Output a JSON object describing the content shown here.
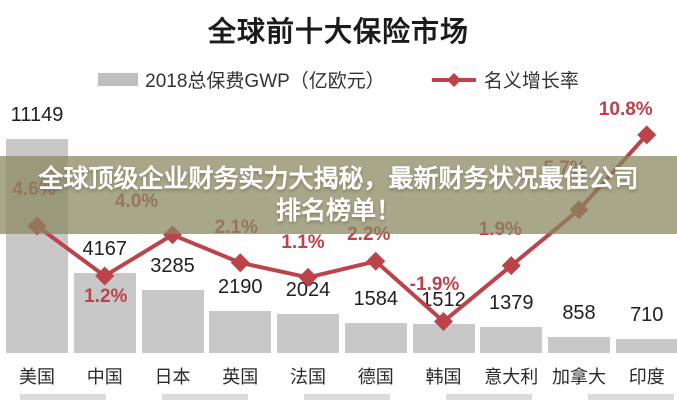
{
  "title": "全球前十大保险市场",
  "legend": {
    "bar_label": "2018总保费GWP（亿欧元）",
    "line_label": "名义增长率"
  },
  "overlay": {
    "line1": "全球顶级企业财务实力大揭秘，最新财务状况最佳公司",
    "line2": "排名榜单！"
  },
  "chart_data": {
    "type": "bar",
    "subtype": "bar-line-combo",
    "title": "全球前十大保险市场",
    "categories": [
      "美国",
      "中国",
      "日本",
      "英国",
      "法国",
      "德国",
      "韩国",
      "意大利",
      "加拿大",
      "印度"
    ],
    "series": [
      {
        "name": "2018总保费GWP（亿欧元）",
        "type": "bar",
        "values": [
          11149,
          4167,
          3285,
          2190,
          2024,
          1584,
          1512,
          1379,
          858,
          710
        ]
      },
      {
        "name": "名义增长率",
        "type": "line",
        "unit": "%",
        "values": [
          4.6,
          1.2,
          4.0,
          2.1,
          1.1,
          2.2,
          -1.9,
          1.9,
          5.7,
          10.8
        ],
        "labels": [
          "4.6%",
          "1.2%",
          "4.0%",
          "2.1%",
          "1.1%",
          "2.2%",
          "-1.9%",
          "1.9%",
          "5.7%",
          "10.8%"
        ]
      }
    ],
    "legend_position": "top",
    "grid": false,
    "value_labels_shown": true
  },
  "colors": {
    "accent_red": "#bb4349",
    "bar_gray": "#c8c8c8",
    "overlay_olive": "#8a8860",
    "text_dark": "#1f1f1f"
  }
}
